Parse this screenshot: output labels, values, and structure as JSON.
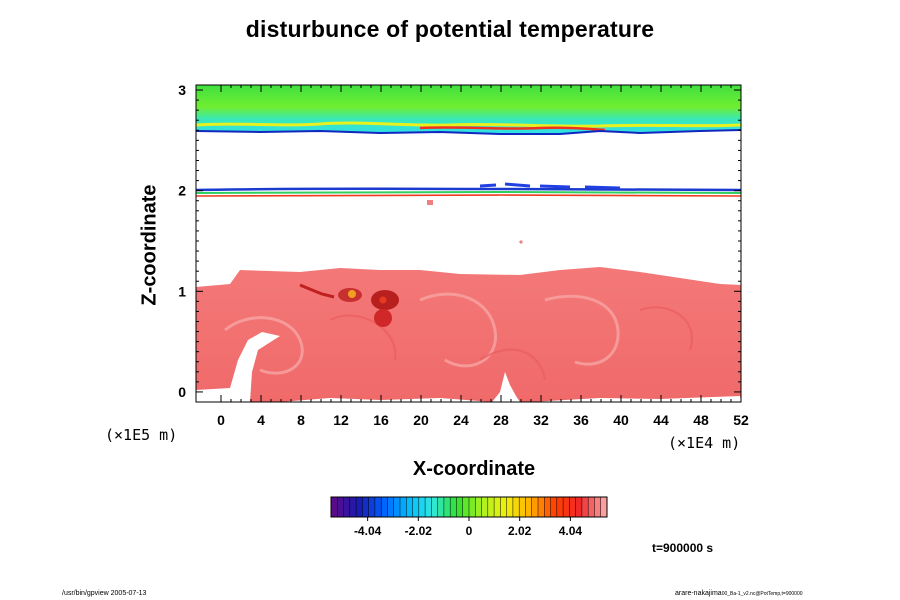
{
  "chart_data": {
    "type": "heatmap",
    "title": "disturbunce of potential temperature",
    "xlabel": "X-coordinate",
    "ylabel": "Z-coordinate",
    "x_scale_note": "(×1E4 m)",
    "y_scale_note": "(×1E5 m)",
    "xlim": [
      -2.5,
      52
    ],
    "ylim": [
      -0.1,
      3.05
    ],
    "x_ticks": [
      0,
      4,
      8,
      12,
      16,
      20,
      24,
      28,
      32,
      36,
      40,
      44,
      48,
      52
    ],
    "y_ticks": [
      0,
      1,
      2,
      3
    ],
    "colorbar": {
      "vmin": -5.5,
      "vmax": 5.5,
      "ticks": [
        -4.04,
        -2.02,
        0,
        2.02,
        4.04
      ],
      "tick_labels": [
        "-4.04",
        "-2.02",
        "0",
        "2.02",
        "4.04"
      ],
      "colors": [
        "#5a0b8a",
        "#1a1ab0",
        "#0060ff",
        "#00b8ff",
        "#30e8e0",
        "#30e030",
        "#a8f020",
        "#f0f010",
        "#ffb000",
        "#ff4000",
        "#f02828",
        "#f8a0a0"
      ]
    },
    "regions": [
      {
        "name": "upper layer",
        "z_range": [
          2.65,
          3.05
        ],
        "color": "green / cyan",
        "approx_value": 0
      },
      {
        "name": "middle front",
        "z_range": [
          1.98,
          2.05
        ],
        "color": "mixed blue/green/red line",
        "approx_value": 0
      },
      {
        "name": "lower layer",
        "z_range": [
          -0.05,
          1.15
        ],
        "color": "light red",
        "approx_value": 5.1
      },
      {
        "name": "intense cell",
        "x_approx": 17,
        "z_approx": 0.9,
        "color": "dark red",
        "approx_value": 4.5
      }
    ],
    "grid": false,
    "legend": "colorbar bottom-center"
  },
  "time_label": "t=900000 s",
  "footer_left": "/usr/bin/gpview 2005-07-13",
  "footer_right_main": "arare-nakajima",
  "footer_right_small": "00_Ba-1_v2.nc@PotTemp,t=900000"
}
